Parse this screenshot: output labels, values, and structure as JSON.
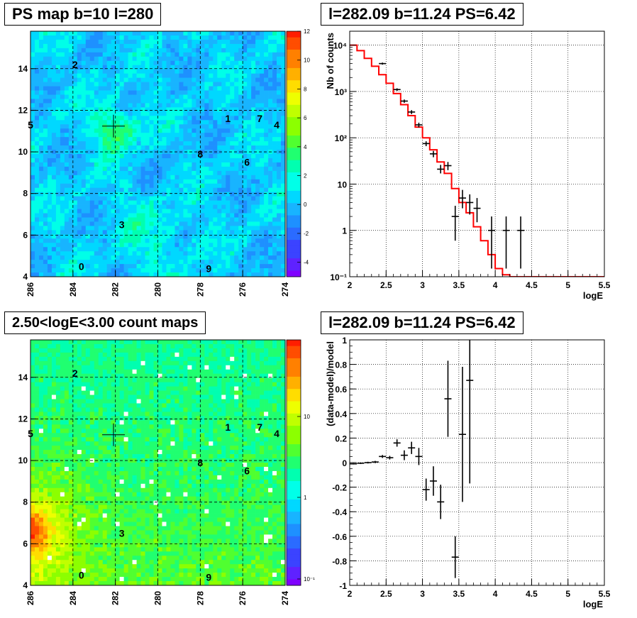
{
  "panels": {
    "ps_map": {
      "title": "PS map b=10 l=280",
      "x_ticks": [
        "286",
        "284",
        "282",
        "280",
        "278",
        "276",
        "274"
      ],
      "y_ticks": [
        "4",
        "6",
        "8",
        "10",
        "12",
        "14"
      ],
      "colorbar_ticks": [
        "12",
        "10",
        "8",
        "6",
        "4",
        "2",
        "0",
        "-2",
        "-4"
      ],
      "marker": {
        "l": 282.09,
        "b": 11.24
      }
    },
    "count_map": {
      "title": "2.50<logE<3.00 count maps",
      "x_ticks": [
        "286",
        "284",
        "282",
        "280",
        "278",
        "276",
        "274"
      ],
      "y_ticks": [
        "4",
        "6",
        "8",
        "10",
        "12",
        "14"
      ],
      "colorbar_ticks": [
        "10",
        "1",
        "10⁻¹"
      ],
      "marker": {
        "l": 282.09,
        "b": 11.24
      }
    },
    "spectrum": {
      "title": "l=282.09 b=11.24 PS=6.42"
    },
    "residual": {
      "title": "l=282.09 b=11.24 PS=6.42"
    }
  },
  "sources": [
    {
      "label": "0",
      "l": 283.6,
      "b": 4.5
    },
    {
      "label": "1",
      "l": 276.7,
      "b": 11.6
    },
    {
      "label": "2",
      "l": 283.9,
      "b": 14.2
    },
    {
      "label": "3",
      "l": 281.7,
      "b": 6.5
    },
    {
      "label": "4",
      "l": 274.4,
      "b": 11.3
    },
    {
      "label": "5",
      "l": 286.0,
      "b": 11.3
    },
    {
      "label": "6",
      "l": 275.8,
      "b": 9.5
    },
    {
      "label": "7",
      "l": 275.2,
      "b": 11.6
    },
    {
      "label": "8",
      "l": 278.0,
      "b": 9.9
    },
    {
      "label": "9",
      "l": 277.6,
      "b": 4.4
    }
  ],
  "chart_data": [
    {
      "type": "heatmap",
      "title": "PS map b=10 l=280",
      "xlim": [
        286,
        274
      ],
      "ylim": [
        4,
        15.8
      ],
      "zlim": [
        -5,
        12
      ],
      "grid": true
    },
    {
      "type": "line",
      "title": "l=282.09 b=11.24 PS=6.42",
      "xlabel": "logE",
      "ylabel": "Nb of counts",
      "xlim": [
        2,
        5.5
      ],
      "ylim": [
        0.1,
        20000
      ],
      "yscale": "log",
      "x_ticks": [
        "2",
        "2.5",
        "3",
        "3.5",
        "4",
        "4.5",
        "5",
        "5.5"
      ],
      "y_ticks": [
        "10⁻¹",
        "1",
        "10",
        "10²",
        "10³",
        "10⁴"
      ],
      "grid": true,
      "model_step": {
        "edges": [
          2.0,
          2.1,
          2.2,
          2.3,
          2.4,
          2.5,
          2.6,
          2.7,
          2.8,
          2.9,
          3.0,
          3.1,
          3.2,
          3.3,
          3.4,
          3.5,
          3.6,
          3.7,
          3.8,
          3.9,
          4.0,
          4.1,
          4.2,
          5.5
        ],
        "values": [
          10000,
          7600,
          5200,
          3500,
          2300,
          1500,
          900,
          520,
          300,
          170,
          100,
          55,
          30,
          17,
          8,
          4,
          2.4,
          1.2,
          0.6,
          0.3,
          0.15,
          0.11,
          0.1
        ]
      },
      "points": [
        {
          "x": 2.45,
          "y": 4000,
          "ylo": 3800,
          "yhi": 4200
        },
        {
          "x": 2.65,
          "y": 1100,
          "ylo": 1030,
          "yhi": 1170
        },
        {
          "x": 2.75,
          "y": 620,
          "ylo": 570,
          "yhi": 670
        },
        {
          "x": 2.85,
          "y": 360,
          "ylo": 325,
          "yhi": 395
        },
        {
          "x": 2.95,
          "y": 190,
          "ylo": 168,
          "yhi": 212
        },
        {
          "x": 3.05,
          "y": 75,
          "ylo": 66,
          "yhi": 84
        },
        {
          "x": 3.15,
          "y": 45,
          "ylo": 38,
          "yhi": 52
        },
        {
          "x": 3.25,
          "y": 21,
          "ylo": 17,
          "yhi": 26
        },
        {
          "x": 3.35,
          "y": 25,
          "ylo": 20,
          "yhi": 30
        },
        {
          "x": 3.45,
          "y": 2,
          "ylo": 0.6,
          "yhi": 3.4
        },
        {
          "x": 3.55,
          "y": 5,
          "ylo": 3,
          "yhi": 7.5
        },
        {
          "x": 3.65,
          "y": 4,
          "ylo": 2.2,
          "yhi": 6
        },
        {
          "x": 3.75,
          "y": 3,
          "ylo": 1.5,
          "yhi": 5
        },
        {
          "x": 3.95,
          "y": 1,
          "ylo": 0.15,
          "yhi": 2
        },
        {
          "x": 4.15,
          "y": 1,
          "ylo": 0.15,
          "yhi": 2
        },
        {
          "x": 4.35,
          "y": 1,
          "ylo": 0.15,
          "yhi": 2
        }
      ]
    },
    {
      "type": "heatmap",
      "title": "2.50<logE<3.00 count maps",
      "xlim": [
        286,
        274
      ],
      "ylim": [
        4,
        15.8
      ],
      "zscale": "log",
      "grid": true
    },
    {
      "type": "scatter",
      "title": "l=282.09 b=11.24 PS=6.42",
      "xlabel": "logE",
      "ylabel": "(data-model)/model",
      "xlim": [
        2,
        5.5
      ],
      "ylim": [
        -1,
        1
      ],
      "x_ticks": [
        "2",
        "2.5",
        "3",
        "3.5",
        "4",
        "4.5",
        "5",
        "5.5"
      ],
      "y_ticks": [
        "-1",
        "-0.8",
        "-0.6",
        "-0.4",
        "-0.2",
        "0",
        "0.2",
        "0.4",
        "0.6",
        "0.8",
        "1"
      ],
      "grid": true,
      "points": [
        {
          "x": 2.05,
          "y": -0.01,
          "err": 0.005
        },
        {
          "x": 2.15,
          "y": -0.005,
          "err": 0.006
        },
        {
          "x": 2.25,
          "y": 0.0,
          "err": 0.007
        },
        {
          "x": 2.35,
          "y": 0.005,
          "err": 0.009
        },
        {
          "x": 2.45,
          "y": 0.05,
          "err": 0.012
        },
        {
          "x": 2.55,
          "y": 0.04,
          "err": 0.015
        },
        {
          "x": 2.65,
          "y": 0.16,
          "err": 0.03
        },
        {
          "x": 2.75,
          "y": 0.06,
          "err": 0.04
        },
        {
          "x": 2.85,
          "y": 0.12,
          "err": 0.05
        },
        {
          "x": 2.95,
          "y": 0.05,
          "err": 0.07
        },
        {
          "x": 3.05,
          "y": -0.22,
          "err": 0.09
        },
        {
          "x": 3.15,
          "y": -0.15,
          "err": 0.12
        },
        {
          "x": 3.25,
          "y": -0.32,
          "err": 0.14
        },
        {
          "x": 3.35,
          "y": 0.52,
          "err": 0.31
        },
        {
          "x": 3.45,
          "y": -0.77,
          "err": 0.17
        },
        {
          "x": 3.55,
          "y": 0.23,
          "err": 0.55
        },
        {
          "x": 3.65,
          "y": 0.67,
          "err": 0.84
        }
      ]
    }
  ]
}
